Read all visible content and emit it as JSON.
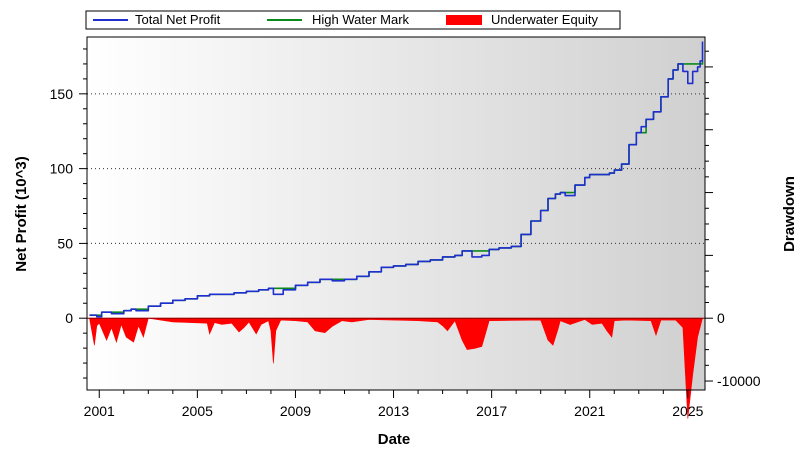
{
  "chart_data": {
    "type": "line",
    "xlabel": "Date",
    "ylabel": "Net Profit (10^3)",
    "ylabel_right": "Drawdown",
    "xlim": [
      2000.5,
      2025.7
    ],
    "ylim": [
      -48,
      188
    ],
    "x_ticks": [
      2001,
      2005,
      2009,
      2013,
      2017,
      2021,
      2025
    ],
    "y_ticks": [
      0,
      50,
      100,
      150
    ],
    "y2_ticks": [
      {
        "value": 0,
        "label": "0"
      },
      {
        "value": -10000,
        "label": "-10000"
      }
    ],
    "y2_scale": 0.0042,
    "grid": true,
    "legend_position": "top",
    "series": [
      {
        "name": "Total Net Profit",
        "color": "#1f2fcf",
        "x": [
          2000.6,
          2000.9,
          2001.1,
          2001.5,
          2002.0,
          2002.3,
          2002.5,
          2003.0,
          2003.5,
          2004.0,
          2004.5,
          2005.0,
          2005.5,
          2006.0,
          2006.5,
          2007.0,
          2007.5,
          2007.9,
          2008.1,
          2008.5,
          2009.0,
          2009.5,
          2010.0,
          2010.5,
          2011.0,
          2011.5,
          2012.0,
          2012.5,
          2013.0,
          2013.5,
          2014.0,
          2014.5,
          2015.0,
          2015.5,
          2015.8,
          2016.2,
          2016.6,
          2016.9,
          2017.3,
          2017.8,
          2018.2,
          2018.6,
          2019.0,
          2019.3,
          2019.6,
          2019.8,
          2020.0,
          2020.4,
          2020.8,
          2021.0,
          2021.4,
          2021.8,
          2022.0,
          2022.3,
          2022.6,
          2022.9,
          2023.1,
          2023.3,
          2023.6,
          2023.9,
          2024.2,
          2024.4,
          2024.6,
          2024.8,
          2025.0,
          2025.2,
          2025.4,
          2025.5,
          2025.6
        ],
        "values": [
          2,
          1,
          4,
          3,
          5,
          6,
          5,
          8,
          10,
          12,
          13,
          15,
          16,
          16,
          17,
          18,
          19,
          20,
          16,
          19,
          22,
          24,
          26,
          25,
          26,
          28,
          31,
          34,
          35,
          36,
          38,
          39,
          41,
          42,
          45,
          41,
          42,
          46,
          47,
          48,
          56,
          65,
          72,
          80,
          83,
          84,
          82,
          89,
          94,
          96,
          96,
          97,
          99,
          103,
          116,
          124,
          128,
          133,
          138,
          148,
          160,
          166,
          170,
          165,
          157,
          165,
          168,
          172,
          185
        ]
      },
      {
        "name": "High Water Mark",
        "color": "#0a8a1a",
        "x": [
          2000.6,
          2001.1,
          2001.5,
          2002.0,
          2002.3,
          2003.0,
          2003.5,
          2004.0,
          2004.5,
          2005.0,
          2005.5,
          2006.0,
          2006.5,
          2007.0,
          2007.5,
          2007.9,
          2008.5,
          2009.0,
          2009.5,
          2010.0,
          2010.5,
          2011.0,
          2011.5,
          2012.0,
          2012.5,
          2013.0,
          2013.5,
          2014.0,
          2014.5,
          2015.0,
          2015.5,
          2015.8,
          2016.6,
          2016.9,
          2017.3,
          2017.8,
          2018.2,
          2018.6,
          2019.0,
          2019.3,
          2019.6,
          2019.8,
          2020.4,
          2020.8,
          2021.0,
          2021.8,
          2022.0,
          2022.3,
          2022.6,
          2022.9,
          2023.3,
          2023.6,
          2023.9,
          2024.2,
          2024.4,
          2024.6,
          2025.4,
          2025.6
        ],
        "values": [
          2,
          4,
          4,
          5,
          6,
          8,
          10,
          12,
          13,
          15,
          16,
          16,
          17,
          18,
          19,
          20,
          20,
          22,
          24,
          26,
          26,
          26,
          28,
          31,
          34,
          35,
          36,
          38,
          39,
          41,
          42,
          45,
          45,
          46,
          47,
          48,
          56,
          65,
          72,
          80,
          83,
          84,
          89,
          94,
          96,
          97,
          99,
          103,
          116,
          124,
          133,
          138,
          148,
          160,
          166,
          170,
          170,
          172
        ]
      },
      {
        "name": "Underwater Equity",
        "color": "#ff0000",
        "type": "area",
        "x": [
          2000.6,
          2000.8,
          2000.9,
          2001.0,
          2001.3,
          2001.5,
          2001.7,
          2001.9,
          2002.1,
          2002.4,
          2002.6,
          2002.8,
          2003.0,
          2004.0,
          2005.4,
          2005.5,
          2005.7,
          2006.0,
          2006.4,
          2006.7,
          2006.9,
          2007.1,
          2007.4,
          2007.6,
          2007.9,
          2008.0,
          2008.1,
          2008.2,
          2008.4,
          2009.0,
          2009.5,
          2009.8,
          2010.2,
          2010.5,
          2010.9,
          2011.3,
          2012.0,
          2013.0,
          2014.0,
          2014.8,
          2015.0,
          2015.2,
          2015.5,
          2015.8,
          2016.0,
          2016.3,
          2016.6,
          2016.9,
          2019.0,
          2019.3,
          2019.5,
          2019.7,
          2019.8,
          2020.2,
          2020.8,
          2021.1,
          2021.5,
          2021.7,
          2021.9,
          2022.0,
          2022.5,
          2023.5,
          2023.7,
          2023.9,
          2024.5,
          2024.8,
          2025.0,
          2025.2,
          2025.4,
          2025.6
        ],
        "values": [
          0,
          -4300,
          -1200,
          -800,
          -3500,
          -1500,
          -3800,
          -1000,
          -3000,
          -3800,
          -1200,
          -3000,
          0,
          -600,
          -800,
          -2500,
          -700,
          -1000,
          -800,
          -2200,
          -1500,
          -600,
          -2500,
          -1000,
          -400,
          -2000,
          -7200,
          -2000,
          -300,
          -400,
          -600,
          -2000,
          -2300,
          -1300,
          -400,
          -600,
          -200,
          -300,
          -400,
          -600,
          -1200,
          -2000,
          -400,
          -3500,
          -5000,
          -4800,
          -4500,
          -400,
          -300,
          -3500,
          -4300,
          -1800,
          -400,
          -1000,
          -200,
          -1000,
          -800,
          -2000,
          -3000,
          -400,
          -300,
          -400,
          -2700,
          -300,
          -300,
          -1500,
          -16000,
          -9000,
          -3000,
          0
        ]
      }
    ]
  }
}
